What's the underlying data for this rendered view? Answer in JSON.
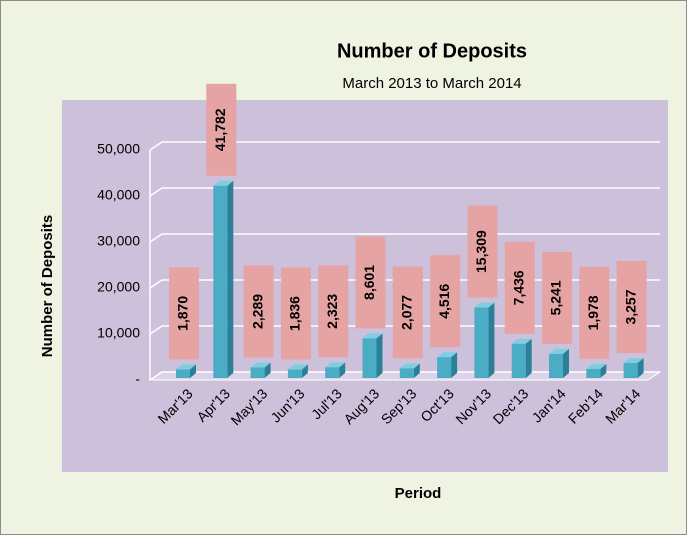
{
  "chart_data": {
    "type": "bar",
    "title": "Number of Deposits",
    "subtitle": "March 2013 to March 2014",
    "x_label": "Period",
    "y_label": "Number of Deposits",
    "categories": [
      "Mar'13",
      "Apr'13",
      "May'13",
      "Jun'13",
      "Jul'13",
      "Aug'13",
      "Sep'13",
      "Oct'13",
      "Nov'13",
      "Dec'13",
      "Jan'14",
      "Feb'14",
      "Mar'14"
    ],
    "values": [
      1870,
      41782,
      2289,
      1836,
      2323,
      8601,
      2077,
      4516,
      15309,
      7436,
      5241,
      1978,
      3257
    ],
    "value_labels": [
      "1,870",
      "41,782",
      "2,289",
      "1,836",
      "2,323",
      "8,601",
      "2,077",
      "4,516",
      "15,309",
      "7,436",
      "5,241",
      "1,978",
      "3,257"
    ],
    "color": "#4bacc6",
    "ylim": [
      0,
      50000
    ],
    "yticks": [
      {
        "value": 0,
        "label": "-"
      },
      {
        "value": 10000,
        "label": "10,000"
      },
      {
        "value": 20000,
        "label": "20,000"
      },
      {
        "value": 30000,
        "label": "30,000"
      },
      {
        "value": 40000,
        "label": "40,000"
      },
      {
        "value": 50000,
        "label": "50,000"
      }
    ],
    "grid": true
  }
}
